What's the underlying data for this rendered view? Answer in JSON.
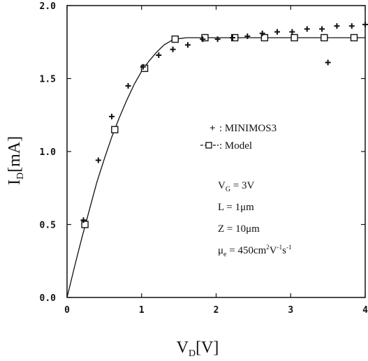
{
  "chart_data": {
    "type": "scatter",
    "xlim": [
      0,
      4
    ],
    "ylim": [
      0,
      2
    ],
    "x_ticks": [
      "0",
      "1",
      "2",
      "3",
      "4"
    ],
    "y_ticks": [
      "0.0",
      "0.5",
      "1.0",
      "1.5",
      "2.0"
    ],
    "x_tick_values": [
      0,
      1,
      2,
      3,
      4
    ],
    "y_tick_values": [
      0,
      0.5,
      1.0,
      1.5,
      2.0
    ],
    "xlabel": {
      "main": "V",
      "sub": "D",
      "unit": "[V]"
    },
    "ylabel": {
      "main": "I",
      "sub": "D",
      "unit": "[mA]"
    },
    "grid": false,
    "series": [
      {
        "name": "MINIMOS3",
        "marker": "plus",
        "points": [
          [
            0.22,
            0.53
          ],
          [
            0.42,
            0.94
          ],
          [
            0.6,
            1.24
          ],
          [
            0.82,
            1.45
          ],
          [
            1.02,
            1.58
          ],
          [
            1.23,
            1.66
          ],
          [
            1.42,
            1.7
          ],
          [
            1.62,
            1.73
          ],
          [
            1.82,
            1.77
          ],
          [
            2.02,
            1.77
          ],
          [
            2.22,
            1.78
          ],
          [
            2.42,
            1.79
          ],
          [
            2.62,
            1.81
          ],
          [
            2.82,
            1.82
          ],
          [
            3.02,
            1.82
          ],
          [
            3.22,
            1.84
          ],
          [
            3.42,
            1.84
          ],
          [
            3.5,
            1.61
          ],
          [
            3.62,
            1.86
          ],
          [
            3.82,
            1.86
          ],
          [
            4.0,
            1.87
          ]
        ]
      },
      {
        "name": "Model",
        "marker": "square",
        "points": [
          [
            0.24,
            0.5
          ],
          [
            0.64,
            1.15
          ],
          [
            1.04,
            1.57
          ],
          [
            1.45,
            1.77
          ],
          [
            1.85,
            1.78
          ],
          [
            2.25,
            1.78
          ],
          [
            2.65,
            1.78
          ],
          [
            3.05,
            1.78
          ],
          [
            3.45,
            1.78
          ],
          [
            3.85,
            1.78
          ]
        ],
        "curve": [
          [
            0.0,
            0.0
          ],
          [
            0.1,
            0.21
          ],
          [
            0.2,
            0.41
          ],
          [
            0.3,
            0.6
          ],
          [
            0.4,
            0.79
          ],
          [
            0.5,
            0.95
          ],
          [
            0.6,
            1.1
          ],
          [
            0.7,
            1.23
          ],
          [
            0.8,
            1.35
          ],
          [
            0.9,
            1.46
          ],
          [
            1.0,
            1.55
          ],
          [
            1.1,
            1.62
          ],
          [
            1.2,
            1.68
          ],
          [
            1.3,
            1.73
          ],
          [
            1.4,
            1.76
          ],
          [
            1.45,
            1.77
          ],
          [
            1.6,
            1.78
          ],
          [
            2.0,
            1.78
          ],
          [
            3.0,
            1.78
          ],
          [
            4.0,
            1.78
          ]
        ]
      }
    ],
    "legend": {
      "entries": [
        {
          "symbol": "+",
          "text": ": MINIMOS3"
        },
        {
          "symbol": "-□-",
          "text": ": Model"
        }
      ]
    },
    "annotations": [
      "V_G = 3V",
      "L = 1μm",
      "Z = 10μm",
      "μ_e = 450cm^2V^-1s^-1"
    ],
    "annotation_parts": {
      "vg": {
        "main": "V",
        "sub": "G",
        "rest": " = 3V"
      },
      "l": "L = 1μm",
      "z": "Z = 10μm",
      "mu": {
        "main": "μ",
        "sub": "e",
        "rest1": " = 450cm",
        "sup1": "2",
        "rest2": "V",
        "sup2": "-1",
        "rest3": "s",
        "sup3": "-1"
      }
    }
  }
}
